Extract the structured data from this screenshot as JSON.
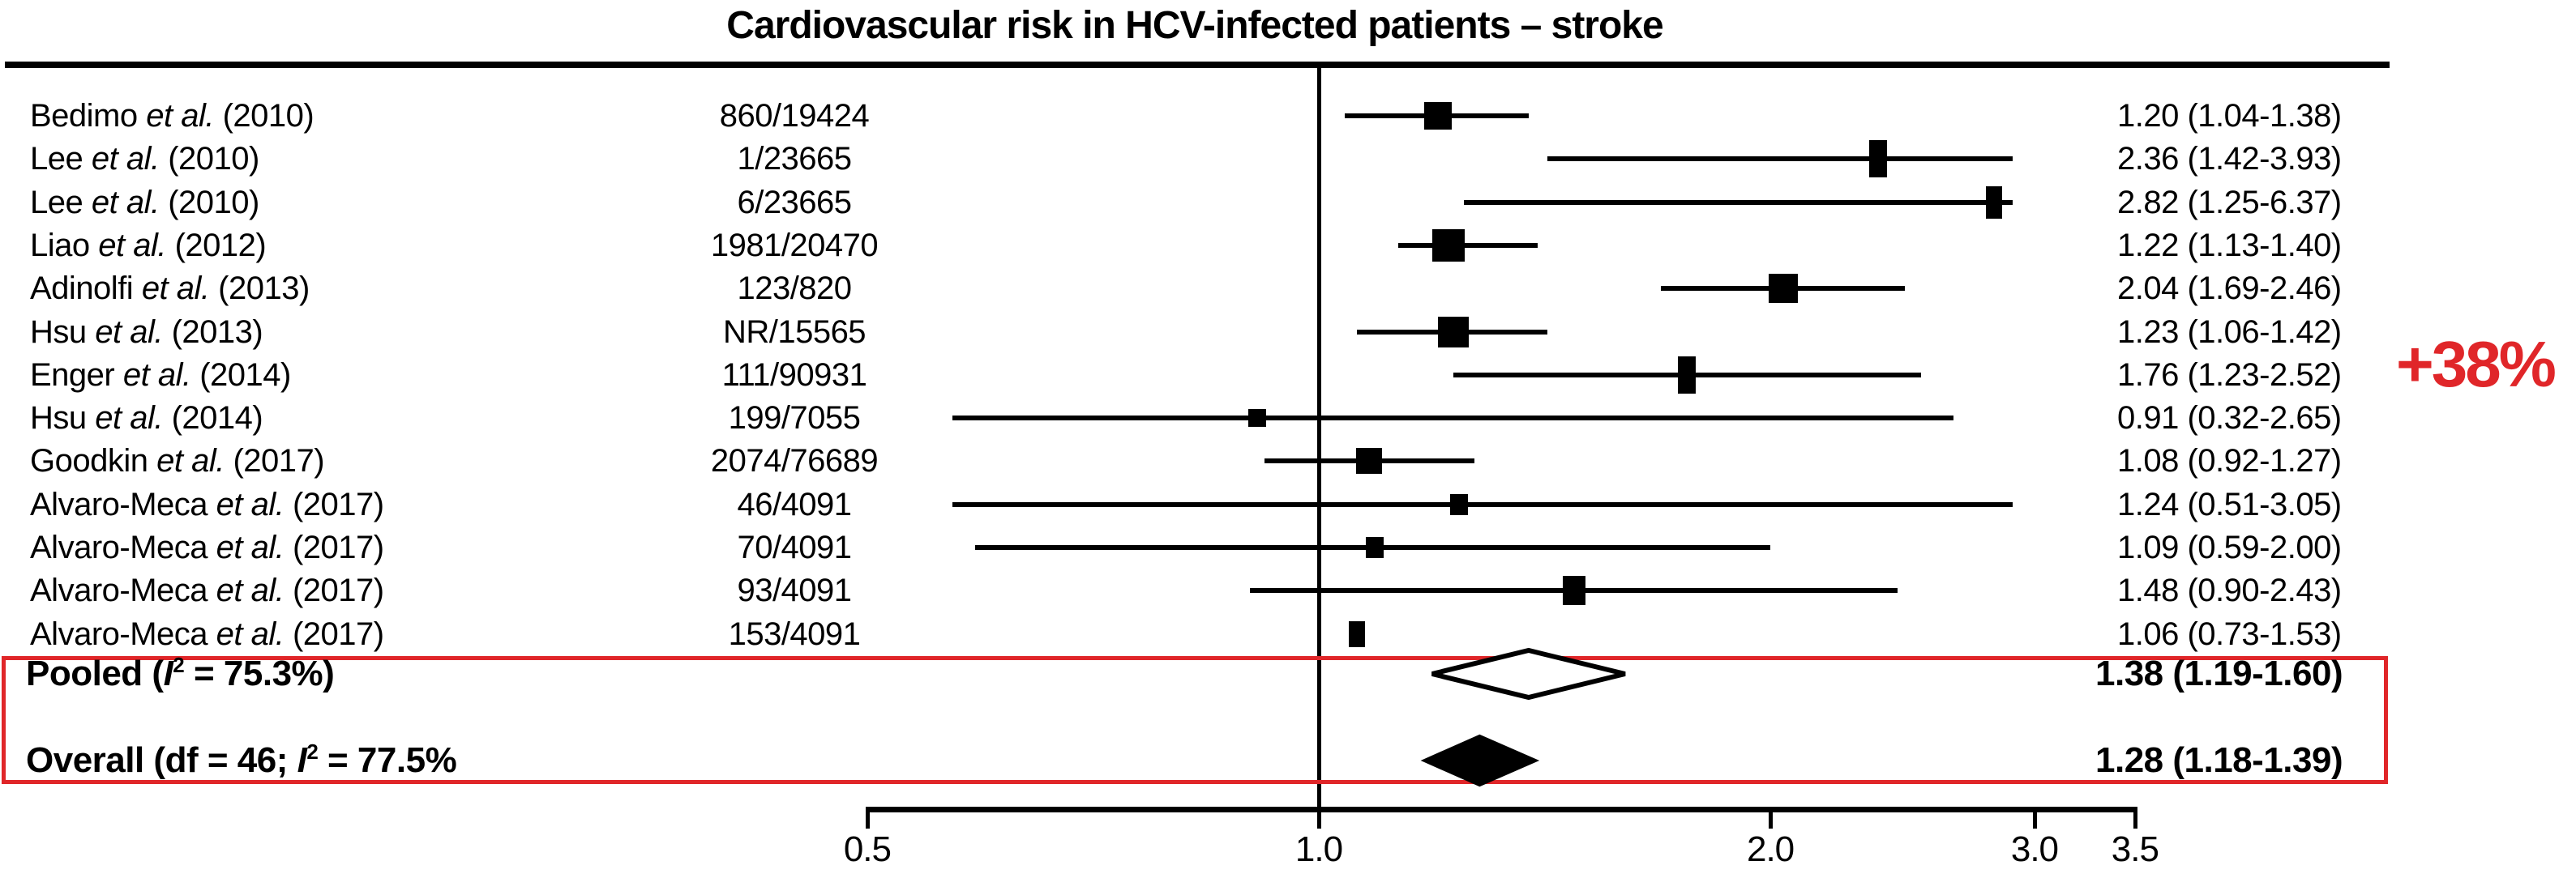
{
  "annotation": {
    "text": "+38%"
  },
  "colors": {
    "accent_red": "#e02629",
    "ink": "#000000",
    "background": "#ffffff"
  },
  "chart_data": {
    "type": "scatter",
    "variant": "forest-plot",
    "title": "Cardiovascular risk in HCV-infected patients – stroke",
    "x_scale": "log",
    "xlim": [
      0.5,
      3.5
    ],
    "reference_line_x": 1.0,
    "x_ticks": [
      "0.5",
      "1.0",
      "2.0",
      "3.0",
      "3.5"
    ],
    "x_tick_values": [
      0.5,
      1.0,
      2.0,
      3.0,
      3.5
    ],
    "grid": false,
    "legend": false,
    "studies": [
      {
        "name_pre": "Bedimo ",
        "name_italic": "et al.",
        "name_post": " (2010)",
        "events": "860/19424",
        "estimate": 1.2,
        "ci_low": 1.04,
        "ci_high": 1.38,
        "estimate_text": "1.20 (1.04-1.38)",
        "marker_w": 34,
        "marker_h": 34,
        "ci_line": true
      },
      {
        "name_pre": "Lee ",
        "name_italic": "et al.",
        "name_post": " (2010)",
        "events": "1/23665",
        "estimate": 2.36,
        "ci_low": 1.42,
        "ci_high": 3.93,
        "estimate_text": "2.36 (1.42-3.93)",
        "marker_w": 22,
        "marker_h": 46,
        "ci_line": true
      },
      {
        "name_pre": "Lee ",
        "name_italic": "et al.",
        "name_post": " (2010)",
        "events": "6/23665",
        "estimate": 2.82,
        "ci_low": 1.25,
        "ci_high": 6.37,
        "estimate_text": "2.82 (1.25-6.37)",
        "marker_w": 20,
        "marker_h": 40,
        "ci_line": true
      },
      {
        "name_pre": "Liao ",
        "name_italic": "et al.",
        "name_post": " (2012)",
        "events": "1981/20470",
        "estimate": 1.22,
        "ci_low": 1.13,
        "ci_high": 1.4,
        "estimate_text": "1.22 (1.13-1.40)",
        "marker_w": 40,
        "marker_h": 40,
        "ci_line": true
      },
      {
        "name_pre": "Adinolfi ",
        "name_italic": "et al.",
        "name_post": " (2013)",
        "events": "123/820",
        "estimate": 2.04,
        "ci_low": 1.69,
        "ci_high": 2.46,
        "estimate_text": "2.04 (1.69-2.46)",
        "marker_w": 36,
        "marker_h": 36,
        "ci_line": true
      },
      {
        "name_pre": "Hsu ",
        "name_italic": "et al.",
        "name_post": " (2013)",
        "events": "NR/15565",
        "estimate": 1.23,
        "ci_low": 1.06,
        "ci_high": 1.42,
        "estimate_text": "1.23 (1.06-1.42)",
        "marker_w": 38,
        "marker_h": 38,
        "ci_line": true
      },
      {
        "name_pre": "Enger ",
        "name_italic": "et al.",
        "name_post": " (2014)",
        "events": "111/90931",
        "estimate": 1.76,
        "ci_low": 1.23,
        "ci_high": 2.52,
        "estimate_text": "1.76 (1.23-2.52)",
        "marker_w": 22,
        "marker_h": 46,
        "ci_line": true
      },
      {
        "name_pre": "Hsu ",
        "name_italic": "et al.",
        "name_post": " (2014)",
        "events": "199/7055",
        "estimate": 0.91,
        "ci_low": 0.32,
        "ci_high": 2.65,
        "estimate_text": "0.91 (0.32-2.65)",
        "marker_w": 22,
        "marker_h": 22,
        "ci_line": true
      },
      {
        "name_pre": "Goodkin ",
        "name_italic": "et al.",
        "name_post": " (2017)",
        "events": "2074/76689",
        "estimate": 1.08,
        "ci_low": 0.92,
        "ci_high": 1.27,
        "estimate_text": "1.08 (0.92-1.27)",
        "marker_w": 32,
        "marker_h": 32,
        "ci_line": true
      },
      {
        "name_pre": "Alvaro-Meca ",
        "name_italic": "et al.",
        "name_post": " (2017)",
        "events": "46/4091",
        "estimate": 1.24,
        "ci_low": 0.51,
        "ci_high": 3.05,
        "estimate_text": "1.24 (0.51-3.05)",
        "marker_w": 22,
        "marker_h": 26,
        "ci_line": true
      },
      {
        "name_pre": "Alvaro-Meca ",
        "name_italic": "et al.",
        "name_post": " (2017)",
        "events": "70/4091",
        "estimate": 1.09,
        "ci_low": 0.59,
        "ci_high": 2.0,
        "estimate_text": "1.09 (0.59-2.00)",
        "marker_w": 22,
        "marker_h": 26,
        "ci_line": true
      },
      {
        "name_pre": "Alvaro-Meca ",
        "name_italic": "et al.",
        "name_post": " (2017)",
        "events": "93/4091",
        "estimate": 1.48,
        "ci_low": 0.9,
        "ci_high": 2.43,
        "estimate_text": "1.48 (0.90-2.43)",
        "marker_w": 28,
        "marker_h": 36,
        "ci_line": true
      },
      {
        "name_pre": "Alvaro-Meca ",
        "name_italic": "et al.",
        "name_post": " (2017)",
        "events": "153/4091",
        "estimate": 1.06,
        "ci_low": 0.73,
        "ci_high": 1.53,
        "estimate_text": "1.06 (0.73-1.53)",
        "marker_w": 20,
        "marker_h": 32,
        "ci_line": false
      }
    ],
    "pooled": {
      "label_pre": "Pooled (",
      "label_italic": "I",
      "label_sup": "2",
      "label_post": " = 75.3%)",
      "estimate": 1.38,
      "ci_low": 1.19,
      "ci_high": 1.6,
      "estimate_text": "1.38 (1.19-1.60)",
      "diamond": "open"
    },
    "overall": {
      "label_pre": "Overall (df = 46; ",
      "label_italic": "I",
      "label_sup": "2",
      "label_post": " = 77.5%",
      "estimate": 1.28,
      "ci_low": 1.18,
      "ci_high": 1.39,
      "estimate_text": "1.28 (1.18-1.39)",
      "diamond": "filled"
    }
  }
}
